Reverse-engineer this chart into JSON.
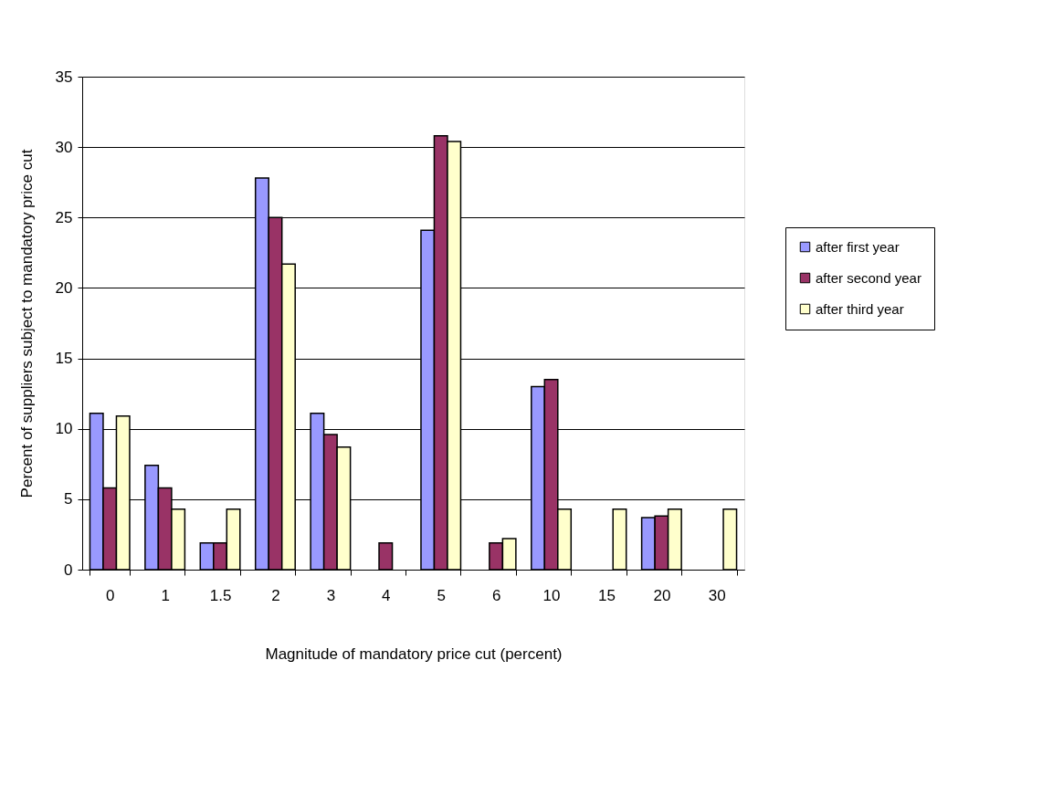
{
  "chart_data": {
    "type": "bar",
    "xlabel": "Magnitude of mandatory price cut (percent)",
    "ylabel": "Percent of suppliers subject to mandatory price cut",
    "categories": [
      "0",
      "1",
      "1.5",
      "2",
      "3",
      "4",
      "5",
      "6",
      "10",
      "15",
      "20",
      "30"
    ],
    "series": [
      {
        "name": "after first year",
        "color": "#9999ff",
        "values": [
          11.1,
          7.4,
          1.9,
          27.8,
          11.1,
          null,
          24.1,
          null,
          13.0,
          null,
          3.7,
          null
        ]
      },
      {
        "name": "after second year",
        "color": "#993366",
        "values": [
          5.8,
          5.8,
          1.9,
          25.0,
          9.6,
          1.9,
          30.8,
          1.9,
          13.5,
          null,
          3.8,
          null
        ]
      },
      {
        "name": "after third year",
        "color": "#ffffcc",
        "values": [
          10.9,
          4.3,
          4.3,
          21.7,
          8.7,
          null,
          30.4,
          2.2,
          4.3,
          4.3,
          4.3,
          4.3
        ]
      }
    ],
    "ylim": [
      0,
      35
    ],
    "yticks": [
      0,
      5,
      10,
      15,
      20,
      25,
      30,
      35
    ],
    "grid": "y",
    "legend": "right"
  }
}
